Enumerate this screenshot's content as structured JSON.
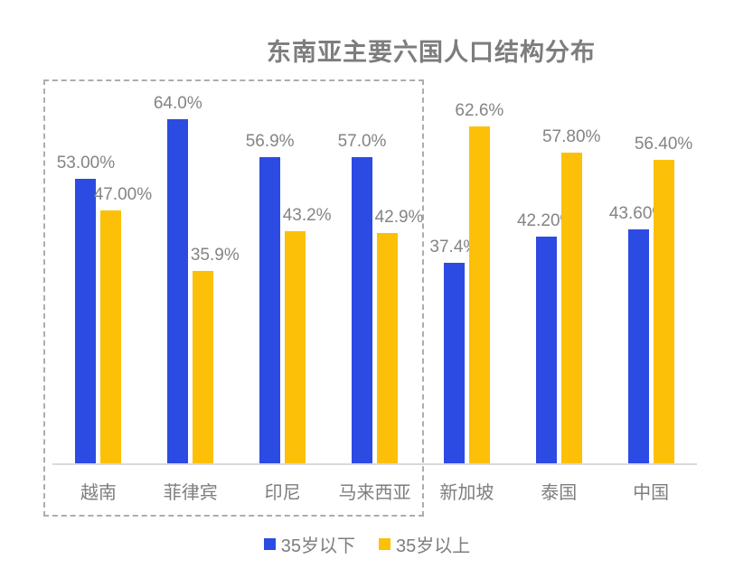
{
  "title": "东南亚主要六国人口结构分布",
  "colors": {
    "series_under35": "#2b4be2",
    "series_over35": "#fdc008",
    "label_gray": "#848484",
    "axis_line": "#d9d9d9",
    "highlight_box_border": "#adadad"
  },
  "chart_data": {
    "type": "bar",
    "title": "东南亚主要六国人口结构分布",
    "categories": [
      "越南",
      "菲律宾",
      "印尼",
      "马来西亚",
      "新加坡",
      "泰国",
      "中国"
    ],
    "series": [
      {
        "name": "35岁以下",
        "color": "#2b4be2",
        "values": [
          53.0,
          64.0,
          56.9,
          57.0,
          37.4,
          42.2,
          43.6
        ],
        "labels": [
          "53.00%",
          "64.0%",
          "56.9%",
          "57.0%",
          "37.4%",
          "42.20%",
          "43.60%"
        ]
      },
      {
        "name": "35岁以上",
        "color": "#fdc008",
        "values": [
          47.0,
          35.9,
          43.2,
          42.9,
          62.6,
          57.8,
          56.4
        ],
        "labels": [
          "47.00%",
          "35.9%",
          "43.2%",
          "42.9%",
          "62.6%",
          "57.80%",
          "56.40%"
        ]
      }
    ],
    "ylim": [
      0,
      70
    ],
    "xlabel": "",
    "ylabel": "",
    "grid": false,
    "y_axis_visible": false,
    "data_labels_visible": true,
    "legend_position": "bottom",
    "highlight_box_categories": [
      "越南",
      "菲律宾",
      "印尼",
      "马来西亚"
    ]
  }
}
